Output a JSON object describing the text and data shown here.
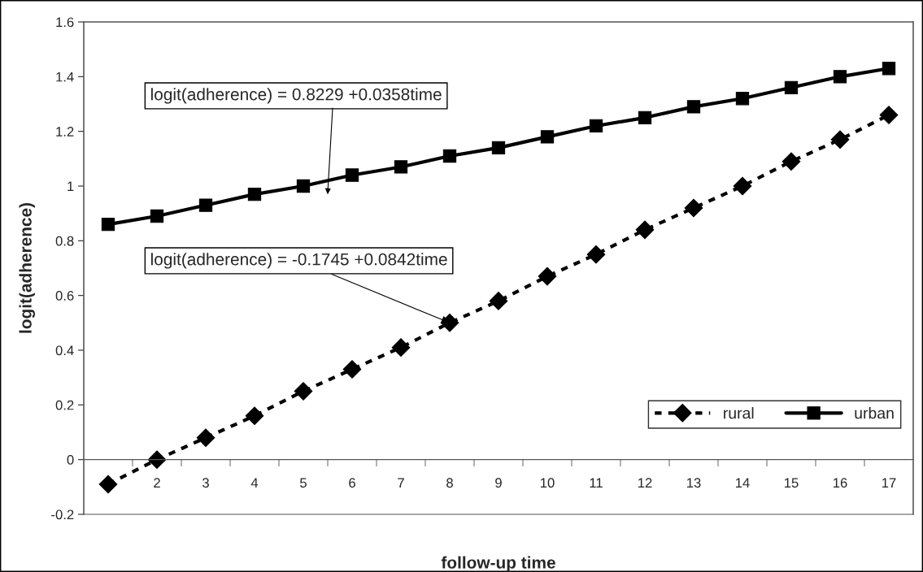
{
  "chart_data": {
    "type": "line",
    "xlabel": "follow-up time",
    "ylabel": "logit(adherence)",
    "categories": [
      null,
      "2",
      "3",
      "4",
      "5",
      "6",
      "7",
      "8",
      "9",
      "10",
      "11",
      "12",
      "13",
      "14",
      "15",
      "16",
      "17"
    ],
    "series": [
      {
        "name": "rural",
        "color": "#000000",
        "marker": "diamond",
        "line_style": "dashed",
        "values": [
          -0.09,
          0.0,
          0.08,
          0.16,
          0.25,
          0.33,
          0.41,
          0.5,
          0.58,
          0.67,
          0.75,
          0.84,
          0.92,
          1.0,
          1.09,
          1.17,
          1.26
        ]
      },
      {
        "name": "urban",
        "color": "#000000",
        "marker": "square",
        "line_style": "solid",
        "values": [
          0.86,
          0.89,
          0.93,
          0.97,
          1.0,
          1.04,
          1.07,
          1.11,
          1.14,
          1.18,
          1.22,
          1.25,
          1.29,
          1.32,
          1.36,
          1.4,
          1.43
        ]
      }
    ],
    "annotations": [
      "logit(adherence) = 0.8229 +0.0358time",
      {
        "text": "logit(adherence) = -0.1745 +0.0842time",
        "x": "8",
        "y": 0.5
      }
    ],
    "ylim": [
      -0.2,
      1.6
    ],
    "yticks": [
      -0.2,
      0,
      0.2,
      0.4,
      0.6,
      0.8,
      1,
      1.2,
      1.4,
      1.6
    ],
    "grid": false,
    "legend": "bottom right"
  }
}
